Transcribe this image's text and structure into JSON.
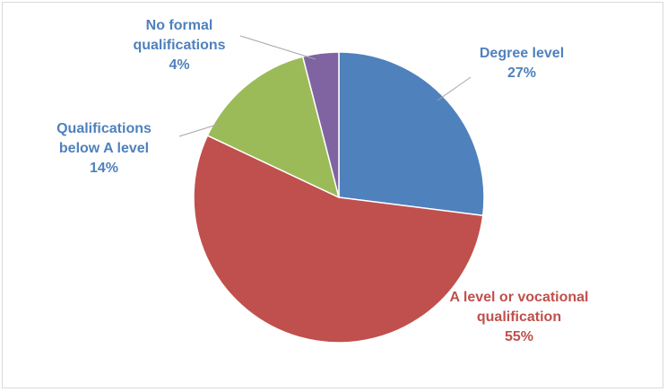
{
  "chart_data": {
    "type": "pie",
    "title": "",
    "slices": [
      {
        "label_lines": [
          "Degree level"
        ],
        "value": 27,
        "value_label": "27%",
        "color": "#4f81bd",
        "text_color": "#4f81bd"
      },
      {
        "label_lines": [
          "A level or vocational",
          "qualification"
        ],
        "value": 55,
        "value_label": "55%",
        "color": "#c0504d",
        "text_color": "#c0504d"
      },
      {
        "label_lines": [
          "Qualifications",
          "below A level"
        ],
        "value": 14,
        "value_label": "14%",
        "color": "#9bbb59",
        "text_color": "#4f81bd"
      },
      {
        "label_lines": [
          "No formal",
          "qualifications"
        ],
        "value": 4,
        "value_label": "4%",
        "color": "#8064a2",
        "text_color": "#4f81bd"
      }
    ],
    "legend": "none",
    "start_angle": "12 o'clock, clockwise"
  }
}
